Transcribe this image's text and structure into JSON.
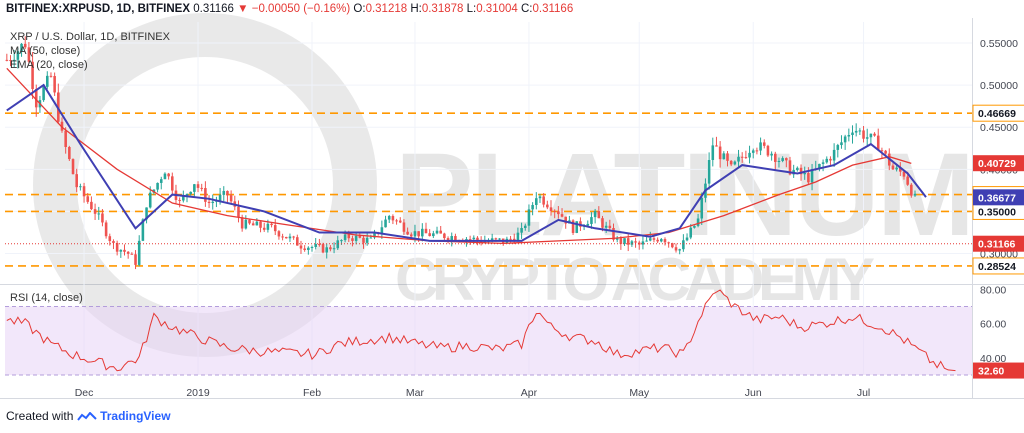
{
  "header": {
    "symbol": "BITFINEX:XRPUSD, 1D, BITFINEX",
    "last": "0.31166",
    "arrow": "▼",
    "change": "−0.00050 (−0.16%)",
    "o_label": "O:",
    "o": "0.31218",
    "h_label": "H:",
    "h": "0.31878",
    "l_label": "L:",
    "l": "0.31004",
    "c_label": "C:",
    "c": "0.31166"
  },
  "legend": {
    "title": "XRP / U.S. Dollar, 1D, BITFINEX",
    "ma": "MA (50, close)",
    "ema": "EMA (20, close)",
    "rsi": "RSI (14, close)"
  },
  "watermark": {
    "line1": "PLATINUM",
    "line2": "CRYPTO ACADEMY"
  },
  "footer": {
    "created": "Created with",
    "brand": "TradingView"
  },
  "colors": {
    "up": "#26a69a",
    "down": "#ef5350",
    "ma50": "#e53935",
    "ema20": "#3f3fb3",
    "level": "#ff9800",
    "rsi": "#e53935",
    "rsi_band": "#e8d4f5",
    "price_line": "#e53935"
  },
  "chart_data": [
    {
      "type": "candlestick",
      "title": "XRP / U.S. Dollar, 1D, BITFINEX",
      "ylim": [
        0.265,
        0.575
      ],
      "yticks": [
        "0.55000",
        "0.50000",
        "0.45000",
        "0.40000",
        "0.35000",
        "0.30000"
      ],
      "yticks_values": [
        0.55,
        0.5,
        0.45,
        0.4,
        0.35,
        0.3
      ],
      "xticks": [
        {
          "label": "Dec",
          "day": 21
        },
        {
          "label": "2019",
          "day": 52
        },
        {
          "label": "Feb",
          "day": 83
        },
        {
          "label": "Mar",
          "day": 111
        },
        {
          "label": "Apr",
          "day": 142
        },
        {
          "label": "May",
          "day": 172
        },
        {
          "label": "Jun",
          "day": 203
        },
        {
          "label": "Jul",
          "day": 233
        }
      ],
      "total_days": 263,
      "last_day": 247,
      "series": [
        {
          "name": "MA (50, close)",
          "kind": "line",
          "points": [
            [
              0,
              0.52
            ],
            [
              15,
              0.45
            ],
            [
              30,
              0.4
            ],
            [
              45,
              0.36
            ],
            [
              60,
              0.345
            ],
            [
              75,
              0.335
            ],
            [
              95,
              0.322
            ],
            [
              115,
              0.315
            ],
            [
              135,
              0.312
            ],
            [
              150,
              0.315
            ],
            [
              165,
              0.318
            ],
            [
              180,
              0.325
            ],
            [
              195,
              0.345
            ],
            [
              210,
              0.37
            ],
            [
              220,
              0.385
            ],
            [
              230,
              0.405
            ],
            [
              240,
              0.415
            ],
            [
              246,
              0.407
            ]
          ]
        },
        {
          "name": "EMA (20, close)",
          "kind": "line",
          "points": [
            [
              0,
              0.47
            ],
            [
              10,
              0.5
            ],
            [
              20,
              0.43
            ],
            [
              35,
              0.33
            ],
            [
              45,
              0.37
            ],
            [
              55,
              0.365
            ],
            [
              70,
              0.35
            ],
            [
              85,
              0.325
            ],
            [
              100,
              0.325
            ],
            [
              115,
              0.315
            ],
            [
              140,
              0.315
            ],
            [
              150,
              0.34
            ],
            [
              160,
              0.33
            ],
            [
              175,
              0.32
            ],
            [
              183,
              0.33
            ],
            [
              190,
              0.375
            ],
            [
              200,
              0.405
            ],
            [
              215,
              0.395
            ],
            [
              225,
              0.405
            ],
            [
              235,
              0.43
            ],
            [
              245,
              0.395
            ],
            [
              250,
              0.367
            ]
          ]
        }
      ],
      "levels": [
        {
          "value": 0.46669,
          "label": "0.46669",
          "kind": "dashed"
        },
        {
          "value": 0.37,
          "label": "0.37000",
          "kind": "dashed"
        },
        {
          "value": 0.35,
          "label": "0.35000",
          "kind": "dashed"
        },
        {
          "value": 0.28524,
          "label": "0.28524",
          "kind": "dashed"
        }
      ],
      "price_badges": [
        {
          "value": 0.40729,
          "label": "0.40729",
          "kind": "ma50"
        },
        {
          "value": 0.36677,
          "label": "0.36677",
          "kind": "ema20"
        },
        {
          "value": 0.31166,
          "label": "0.31166",
          "kind": "last"
        }
      ],
      "keypoints": [
        [
          0,
          0.53
        ],
        [
          5,
          0.55
        ],
        [
          8,
          0.48
        ],
        [
          12,
          0.51
        ],
        [
          15,
          0.44
        ],
        [
          19,
          0.38
        ],
        [
          24,
          0.35
        ],
        [
          29,
          0.31
        ],
        [
          33,
          0.3
        ],
        [
          35,
          0.29
        ],
        [
          38,
          0.36
        ],
        [
          43,
          0.4
        ],
        [
          47,
          0.36
        ],
        [
          51,
          0.385
        ],
        [
          55,
          0.36
        ],
        [
          60,
          0.37
        ],
        [
          64,
          0.335
        ],
        [
          72,
          0.33
        ],
        [
          80,
          0.31
        ],
        [
          87,
          0.305
        ],
        [
          93,
          0.32
        ],
        [
          99,
          0.315
        ],
        [
          104,
          0.345
        ],
        [
          110,
          0.325
        ],
        [
          122,
          0.32
        ],
        [
          130,
          0.315
        ],
        [
          136,
          0.315
        ],
        [
          140,
          0.325
        ],
        [
          144,
          0.37
        ],
        [
          150,
          0.35
        ],
        [
          154,
          0.33
        ],
        [
          160,
          0.345
        ],
        [
          166,
          0.315
        ],
        [
          172,
          0.31
        ],
        [
          178,
          0.32
        ],
        [
          183,
          0.305
        ],
        [
          188,
          0.34
        ],
        [
          192,
          0.43
        ],
        [
          197,
          0.4
        ],
        [
          203,
          0.43
        ],
        [
          208,
          0.42
        ],
        [
          213,
          0.4
        ],
        [
          218,
          0.39
        ],
        [
          225,
          0.42
        ],
        [
          230,
          0.45
        ],
        [
          237,
          0.43
        ],
        [
          241,
          0.4
        ],
        [
          244,
          0.395
        ],
        [
          247,
          0.365
        ],
        [
          252,
          0.33
        ],
        [
          256,
          0.31
        ],
        [
          258,
          0.312
        ]
      ]
    },
    {
      "type": "line",
      "title": "RSI (14, close)",
      "ylim": [
        30,
        82
      ],
      "yticks": [
        "80.00",
        "60.00",
        "40.00"
      ],
      "yticks_values": [
        80,
        60,
        40
      ],
      "band": [
        30,
        70
      ],
      "last_label": "32.60",
      "series": [
        {
          "name": "RSI (14, close)",
          "points": [
            [
              0,
              62
            ],
            [
              5,
              60
            ],
            [
              12,
              48
            ],
            [
              18,
              42
            ],
            [
              24,
              38
            ],
            [
              30,
              34
            ],
            [
              36,
              40
            ],
            [
              40,
              64
            ],
            [
              45,
              58
            ],
            [
              52,
              52
            ],
            [
              60,
              46
            ],
            [
              68,
              44
            ],
            [
              76,
              43
            ],
            [
              84,
              42
            ],
            [
              90,
              48
            ],
            [
              96,
              50
            ],
            [
              104,
              52
            ],
            [
              112,
              48
            ],
            [
              118,
              46
            ],
            [
              126,
              47
            ],
            [
              134,
              45
            ],
            [
              140,
              48
            ],
            [
              144,
              68
            ],
            [
              148,
              58
            ],
            [
              154,
              52
            ],
            [
              160,
              50
            ],
            [
              166,
              42
            ],
            [
              172,
              44
            ],
            [
              178,
              46
            ],
            [
              184,
              42
            ],
            [
              189,
              66
            ],
            [
              193,
              80
            ],
            [
              198,
              70
            ],
            [
              204,
              62
            ],
            [
              210,
              64
            ],
            [
              216,
              58
            ],
            [
              222,
              60
            ],
            [
              230,
              64
            ],
            [
              238,
              58
            ],
            [
              243,
              52
            ],
            [
              248,
              44
            ],
            [
              252,
              37
            ],
            [
              256,
              33
            ],
            [
              258,
              32.6
            ]
          ]
        }
      ]
    }
  ]
}
